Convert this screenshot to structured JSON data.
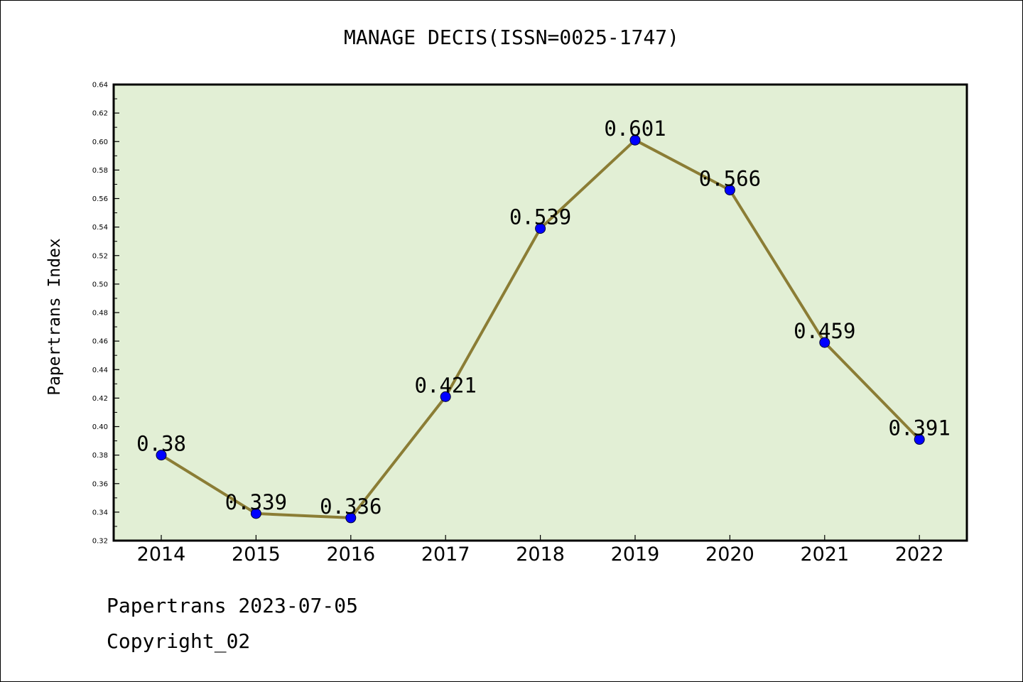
{
  "chart_data": {
    "type": "line",
    "title": "MANAGE DECIS(ISSN=0025-1747)",
    "xlabel": "",
    "ylabel": "Papertrans Index",
    "categories": [
      "2014",
      "2015",
      "2016",
      "2017",
      "2018",
      "2019",
      "2020",
      "2021",
      "2022"
    ],
    "values": [
      0.38,
      0.339,
      0.336,
      0.421,
      0.539,
      0.601,
      0.566,
      0.459,
      0.391
    ],
    "data_labels": [
      "0.38",
      "0.339",
      "0.336",
      "0.421",
      "0.539",
      "0.601",
      "0.566",
      "0.459",
      "0.391"
    ],
    "ylim": [
      0.32,
      0.64
    ],
    "y_ticks": [
      "0.32",
      "0.34",
      "0.36",
      "0.38",
      "0.40",
      "0.42",
      "0.44",
      "0.46",
      "0.48",
      "0.50",
      "0.52",
      "0.54",
      "0.56",
      "0.58",
      "0.60",
      "0.62",
      "0.64"
    ],
    "grid": false,
    "legend": "none",
    "colors": {
      "plot_background": "#e2efd5",
      "line": "#8b7d35",
      "marker": "#0000ff"
    }
  },
  "footer": {
    "date_line": "Papertrans 2023-07-05",
    "copyright_line": "Copyright_02"
  }
}
